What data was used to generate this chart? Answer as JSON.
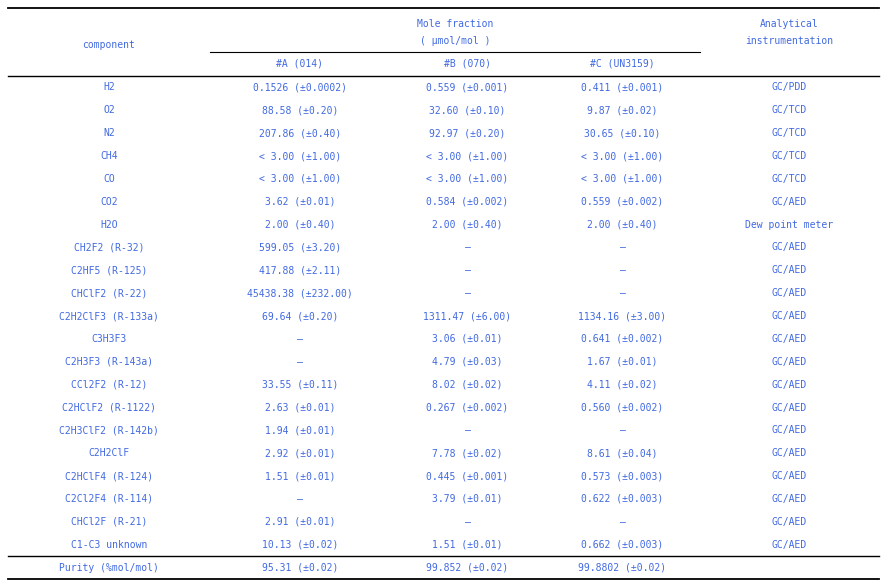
{
  "rows": [
    [
      "H2",
      "0.1526 (±0.0002)",
      "0.559 (±0.001)",
      "0.411 (±0.001)",
      "GC/PDD"
    ],
    [
      "O2",
      "88.58 (±0.20)",
      "32.60 (±0.10)",
      "9.87 (±0.02)",
      "GC/TCD"
    ],
    [
      "N2",
      "207.86 (±0.40)",
      "92.97 (±0.20)",
      "30.65 (±0.10)",
      "GC/TCD"
    ],
    [
      "CH4",
      "< 3.00 (±1.00)",
      "< 3.00 (±1.00)",
      "< 3.00 (±1.00)",
      "GC/TCD"
    ],
    [
      "CO",
      "< 3.00 (±1.00)",
      "< 3.00 (±1.00)",
      "< 3.00 (±1.00)",
      "GC/TCD"
    ],
    [
      "CO2",
      "3.62 (±0.01)",
      "0.584 (±0.002)",
      "0.559 (±0.002)",
      "GC/AED"
    ],
    [
      "H2O",
      "2.00 (±0.40)",
      "2.00 (±0.40)",
      "2.00 (±0.40)",
      "Dew point meter"
    ],
    [
      "CH2F2 (R-32)",
      "599.05 (±3.20)",
      "–",
      "–",
      "GC/AED"
    ],
    [
      "C2HF5 (R-125)",
      "417.88 (±2.11)",
      "–",
      "–",
      "GC/AED"
    ],
    [
      "CHClF2 (R-22)",
      "45438.38 (±232.00)",
      "–",
      "–",
      "GC/AED"
    ],
    [
      "C2H2ClF3 (R-133a)",
      "69.64 (±0.20)",
      "1311.47 (±6.00)",
      "1134.16 (±3.00)",
      "GC/AED"
    ],
    [
      "C3H3F3",
      "–",
      "3.06 (±0.01)",
      "0.641 (±0.002)",
      "GC/AED"
    ],
    [
      "C2H3F3 (R-143a)",
      "–",
      "4.79 (±0.03)",
      "1.67 (±0.01)",
      "GC/AED"
    ],
    [
      "CCl2F2 (R-12)",
      "33.55 (±0.11)",
      "8.02 (±0.02)",
      "4.11 (±0.02)",
      "GC/AED"
    ],
    [
      "C2HClF2 (R-1122)",
      "2.63 (±0.01)",
      "0.267 (±0.002)",
      "0.560 (±0.002)",
      "GC/AED"
    ],
    [
      "C2H3ClF2 (R-142b)",
      "1.94 (±0.01)",
      "–",
      "–",
      "GC/AED"
    ],
    [
      "C2H2ClF",
      "2.92 (±0.01)",
      "7.78 (±0.02)",
      "8.61 (±0.04)",
      "GC/AED"
    ],
    [
      "C2HClF4 (R-124)",
      "1.51 (±0.01)",
      "0.445 (±0.001)",
      "0.573 (±0.003)",
      "GC/AED"
    ],
    [
      "C2Cl2F4 (R-114)",
      "–",
      "3.79 (±0.01)",
      "0.622 (±0.003)",
      "GC/AED"
    ],
    [
      "CHCl2F (R-21)",
      "2.91 (±0.01)",
      "–",
      "–",
      "GC/AED"
    ],
    [
      "C1-C3 unknown",
      "10.13 (±0.02)",
      "1.51 (±0.01)",
      "0.662 (±0.003)",
      "GC/AED"
    ]
  ],
  "purity_row": [
    "Purity (%mol/mol)",
    "95.31 (±0.02)",
    "99.852 (±0.02)",
    "99.8802 (±0.02)",
    ""
  ],
  "text_color": "#4169E1",
  "bg_color": "#FFFFFF",
  "font_size": 7.0,
  "header_font_size": 7.0
}
